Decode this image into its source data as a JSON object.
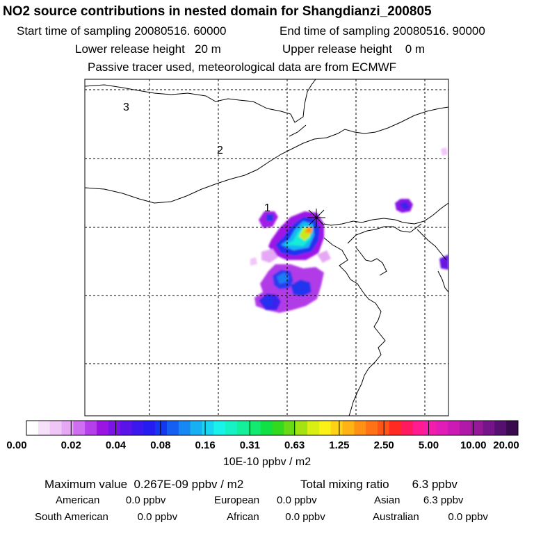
{
  "header": {
    "title": "NO2 source contributions in nested domain for Shangdianzi_200805",
    "start_time": "Start time of sampling 20080516. 60000",
    "end_time": "End time of sampling 20080516. 90000",
    "lower_height": "Lower release height   20 m",
    "upper_height": "Upper release height    0 m",
    "tracer_note": "Passive tracer used, meteorological data are from ECMWF"
  },
  "map": {
    "region_labels": [
      "3",
      "2",
      "1"
    ],
    "receptor_marker": "station-star-icon"
  },
  "colorbar": {
    "tick_labels": [
      "0.00",
      "0.02",
      "0.04",
      "0.08",
      "0.16",
      "0.31",
      "0.63",
      "1.25",
      "2.50",
      "5.00",
      "10.00",
      "20.00"
    ],
    "units": "10E-10 ppbv / m2",
    "colors": [
      "#ffffff",
      "#f6e0fa",
      "#f0c6f7",
      "#e6a8f5",
      "#cf6ef0",
      "#b53fea",
      "#9a14e2",
      "#7b12e6",
      "#5a14ea",
      "#3b18ee",
      "#241cf0",
      "#1637f0",
      "#1560f2",
      "#1688f3",
      "#17b1f3",
      "#18d5f1",
      "#18f2ea",
      "#17f2c4",
      "#14ef9a",
      "#12e970",
      "#10e044",
      "#32d91c",
      "#6ad915",
      "#a4e213",
      "#d9ee12",
      "#fbf117",
      "#ffd315",
      "#ffb215",
      "#ff9214",
      "#ff7215",
      "#ff5417",
      "#ff2a22",
      "#ff1a60",
      "#ff1c93",
      "#f41cab",
      "#e21cb7",
      "#cc1bb4",
      "#b11aa8",
      "#941897",
      "#76158a",
      "#561070",
      "#3a0a4e"
    ]
  },
  "summary": {
    "max_value": "Maximum value  0.267E-09 ppbv / m2",
    "total_mixing": "Total mixing ratio       6.3 ppbv",
    "american": "American         0.0 ppbv",
    "european": "European      0.0 ppbv",
    "asian": "Asian        6.3 ppbv",
    "south_american": "South American          0.0 ppbv",
    "african": "African         0.0 ppbv",
    "australian": "Australian          0.0 ppbv"
  }
}
